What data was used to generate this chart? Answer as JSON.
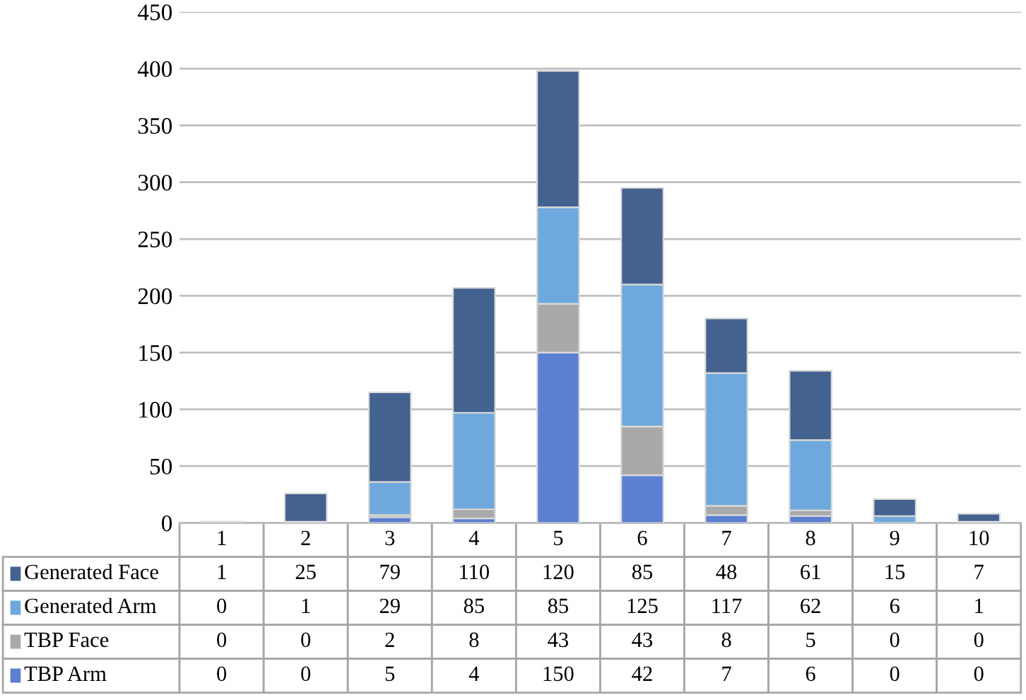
{
  "chart_data": {
    "type": "bar",
    "stacked": true,
    "categories": [
      "1",
      "2",
      "3",
      "4",
      "5",
      "6",
      "7",
      "8",
      "9",
      "10"
    ],
    "series": [
      {
        "name": "TBP Arm",
        "color": "#5b7fd1",
        "values": [
          0,
          0,
          5,
          4,
          150,
          42,
          7,
          6,
          0,
          0
        ]
      },
      {
        "name": "TBP Face",
        "color": "#a9a9a9",
        "values": [
          0,
          0,
          2,
          8,
          43,
          43,
          8,
          5,
          0,
          0
        ]
      },
      {
        "name": "Generated Arm",
        "color": "#6fa8dc",
        "values": [
          0,
          1,
          29,
          85,
          85,
          125,
          117,
          62,
          6,
          1
        ]
      },
      {
        "name": "Generated Face",
        "color": "#44628f",
        "values": [
          1,
          25,
          79,
          110,
          120,
          85,
          48,
          61,
          15,
          7
        ]
      }
    ],
    "ylim": [
      0,
      450
    ],
    "yticks": [
      0,
      50,
      100,
      150,
      200,
      250,
      300,
      350,
      400,
      450
    ],
    "grid": "y",
    "data_labels": true,
    "legend": "bottom"
  }
}
